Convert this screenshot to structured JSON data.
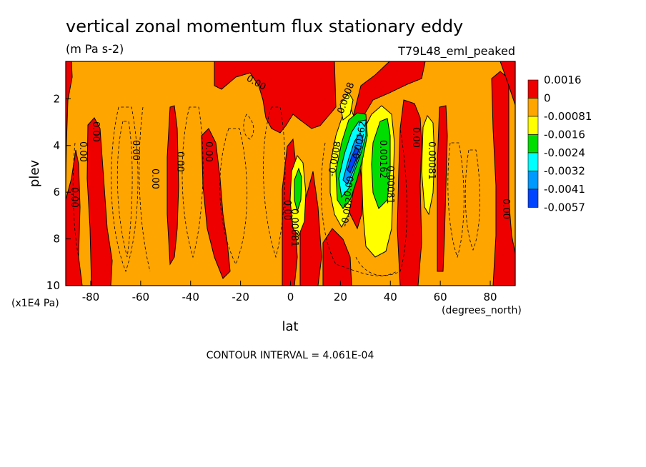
{
  "chart_data": {
    "type": "heatmap",
    "title": "vertical zonal momentum flux stationary eddy",
    "units": "(m Pa s-2)",
    "experiment": "T79L48_eml_peaked",
    "xlabel": "lat",
    "xunits": "(degrees_north)",
    "ylabel": "plev",
    "yunits": "(x1E4 Pa)",
    "xlim": [
      -90,
      90
    ],
    "ylim": [
      10,
      0.4
    ],
    "xticks": [
      "-80",
      "-60",
      "-40",
      "-20",
      "0",
      "20",
      "40",
      "60",
      "80"
    ],
    "yticks": [
      "2",
      "4",
      "6",
      "8",
      "10"
    ],
    "contour_interval_text": "CONTOUR INTERVAL = 4.061E-04",
    "colorbar": {
      "labels": [
        "0.0016",
        "0",
        "-0.00081",
        "-0.0016",
        "-0.0024",
        "-0.0032",
        "-0.0041",
        "-0.0057"
      ],
      "colors": [
        "#ee0000",
        "#ffa500",
        "#ffff00",
        "#00dd00",
        "#00ffff",
        "#0099ff",
        "#0044ff"
      ]
    },
    "contour_labels": [
      "0.00",
      "0.00",
      "0.00",
      "0.00",
      "0.00",
      "0.00",
      "0.00",
      "0.00",
      "0.00",
      "0.00081",
      "-0.0008",
      "-0.00162",
      "-0.002",
      "0.00162",
      "0.00081",
      "0.00081",
      "0.00",
      "0.00",
      "0.0008",
      "0.00"
    ],
    "notes_regions": {
      "positive_red": "surface to ~10 at lat -85, -75, -30, 0..10, 25..30, 42..50, 60..62, 78..82; upper levels -40..0 and 30..40",
      "negative_max": "about -0.0057 near lat 22, plev 4.5"
    }
  }
}
